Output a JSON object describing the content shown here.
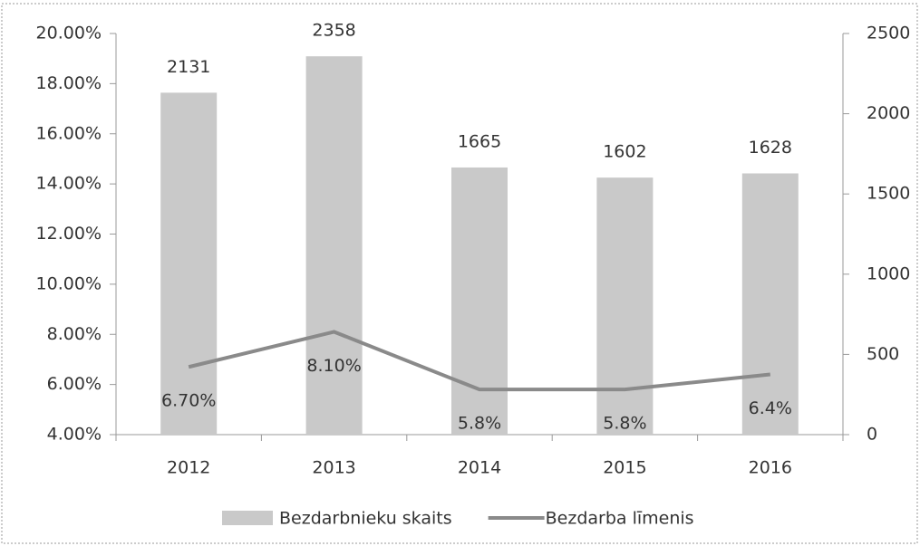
{
  "chart_data": {
    "type": "bar-line",
    "categories": [
      "2012",
      "2013",
      "2014",
      "2015",
      "2016"
    ],
    "series": [
      {
        "name": "Bezdarbnieku skaits",
        "color": "#c9c9c9",
        "type": "bar",
        "axis": "y2",
        "values": [
          2131,
          2358,
          1665,
          1602,
          1628
        ]
      },
      {
        "name": "Bezdarba līmenis",
        "color": "#8a8a8a",
        "type": "line",
        "axis": "y",
        "values": [
          6.7,
          8.1,
          5.8,
          5.8,
          6.4
        ],
        "value_labels": [
          "6.70%",
          "8.10%",
          "5.8%",
          "5.8%",
          "6.4%"
        ]
      }
    ],
    "ylim": [
      4,
      20
    ],
    "yticks": [
      {
        "value": 4,
        "label": "4.00%"
      },
      {
        "value": 6,
        "label": "6.00%"
      },
      {
        "value": 8,
        "label": "8.00%"
      },
      {
        "value": 10,
        "label": "10.00%"
      },
      {
        "value": 12,
        "label": "12.00%"
      },
      {
        "value": 14,
        "label": "14.00%"
      },
      {
        "value": 16,
        "label": "16.00%"
      },
      {
        "value": 18,
        "label": "18.00%"
      },
      {
        "value": 20,
        "label": "20.00%"
      }
    ],
    "y2lim": [
      0,
      2500
    ],
    "y2ticks": [
      0,
      500,
      1000,
      1500,
      2000,
      2500
    ],
    "legend": "bottom",
    "grid": false
  }
}
